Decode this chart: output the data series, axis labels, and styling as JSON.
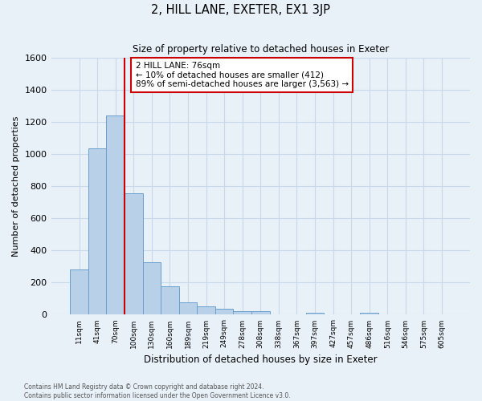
{
  "title": "2, HILL LANE, EXETER, EX1 3JP",
  "subtitle": "Size of property relative to detached houses in Exeter",
  "xlabel": "Distribution of detached houses by size in Exeter",
  "ylabel": "Number of detached properties",
  "bin_labels": [
    "11sqm",
    "41sqm",
    "70sqm",
    "100sqm",
    "130sqm",
    "160sqm",
    "189sqm",
    "219sqm",
    "249sqm",
    "278sqm",
    "308sqm",
    "338sqm",
    "367sqm",
    "397sqm",
    "427sqm",
    "457sqm",
    "486sqm",
    "516sqm",
    "546sqm",
    "575sqm",
    "605sqm"
  ],
  "bar_values": [
    280,
    1035,
    1240,
    755,
    325,
    175,
    75,
    50,
    37,
    20,
    20,
    0,
    0,
    10,
    0,
    0,
    10,
    0,
    0,
    0,
    0
  ],
  "bar_color": "#b8d0e8",
  "bar_edge_color": "#6aa0cc",
  "vline_x_bin": 2.5,
  "vline_color": "#cc0000",
  "ylim": [
    0,
    1600
  ],
  "yticks": [
    0,
    200,
    400,
    600,
    800,
    1000,
    1200,
    1400,
    1600
  ],
  "annotation_title": "2 HILL LANE: 76sqm",
  "annotation_line1": "← 10% of detached houses are smaller (412)",
  "annotation_line2": "89% of semi-detached houses are larger (3,563) →",
  "annotation_box_color": "#ffffff",
  "annotation_box_edge": "#cc0000",
  "grid_color": "#c8d8e8",
  "bg_color": "#e8f0f8",
  "footer1": "Contains HM Land Registry data © Crown copyright and database right 2024.",
  "footer2": "Contains public sector information licensed under the Open Government Licence v3.0."
}
